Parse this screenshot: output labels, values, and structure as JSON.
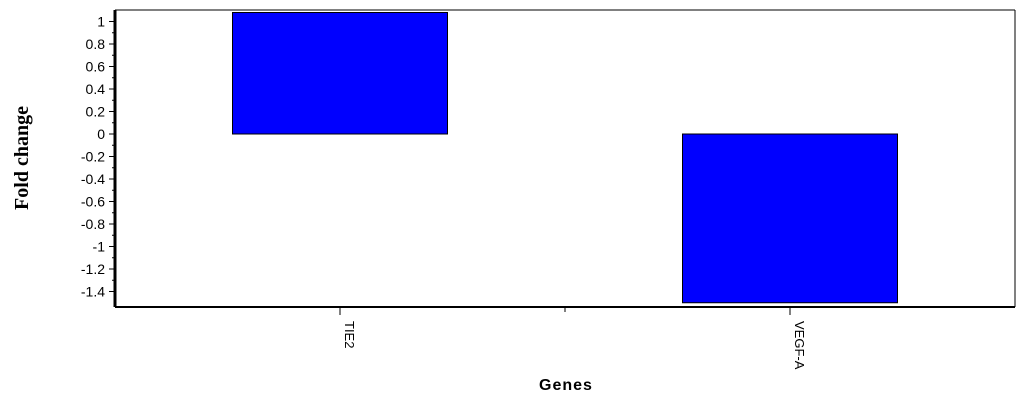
{
  "chart_data": {
    "type": "bar",
    "categories": [
      "TIE2",
      "VEGF-A"
    ],
    "values": [
      1.08,
      -1.5
    ],
    "title": "",
    "xlabel": "Genes",
    "ylabel": "Fold change",
    "ylim": [
      -1.5,
      1.1
    ],
    "yticks": [
      1,
      0.8,
      0.6,
      0.4,
      0.2,
      0,
      -0.2,
      -0.4,
      -0.6,
      -0.8,
      -1,
      -1.2,
      -1.4
    ],
    "ytick_labels": [
      "1",
      "0.8",
      "0.6",
      "0.4",
      "0.2",
      "0",
      "-0.2",
      "-0.4",
      "-0.6",
      "-0.8",
      "-1",
      "-1.2",
      "-1.4"
    ],
    "bar_color": "#0000ff",
    "grid": false,
    "legend": "none"
  }
}
